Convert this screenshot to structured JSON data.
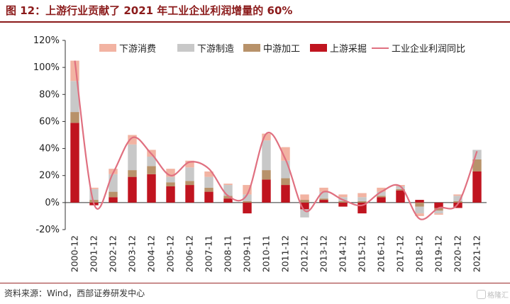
{
  "figure_title": "图 12：上游行业贡献了 2021 年工业企业利润增量的 60%",
  "source": "资料来源：Wind，西部证券研发中心",
  "watermark": "格隆汇",
  "colors": {
    "downstream_consumption": "#f2b3a2",
    "downstream_manufacturing": "#c8c8c8",
    "midstream_processing": "#b8926a",
    "upstream_mining": "#c0141f",
    "profit_yoy_line": "#e07080",
    "title": "#8b1a1a"
  },
  "chart_data": {
    "type": "bar",
    "stacked": true,
    "categories": [
      "2000-12",
      "2001-12",
      "2002-12",
      "2003-12",
      "2004-12",
      "2005-12",
      "2006-12",
      "2007-11",
      "2008-11",
      "2009-11",
      "2010-11",
      "2011-12",
      "2012-12",
      "2013-12",
      "2014-12",
      "2015-12",
      "2016-12",
      "2017-12",
      "2018-12",
      "2019-12",
      "2020-12",
      "2021-12"
    ],
    "ylim": [
      -20,
      120
    ],
    "yticks": [
      "-20%",
      "0%",
      "20%",
      "40%",
      "60%",
      "80%",
      "100%",
      "120%"
    ],
    "ytick_values": [
      -20,
      0,
      20,
      40,
      60,
      80,
      100,
      120
    ],
    "legend_position": "top",
    "series": [
      {
        "name": "下游消费",
        "kind": "bar",
        "values": [
          15,
          1,
          4,
          7,
          5,
          6,
          5,
          4,
          1,
          7,
          5,
          10,
          4,
          3,
          2,
          3,
          3,
          1,
          -2,
          -1,
          1,
          0
        ]
      },
      {
        "name": "下游制造",
        "kind": "bar",
        "values": [
          23,
          8,
          13,
          19,
          7,
          4,
          10,
          8,
          8,
          5,
          22,
          13,
          -6,
          5,
          3,
          3,
          3,
          2,
          -5,
          -2,
          4,
          7
        ]
      },
      {
        "name": "中游加工",
        "kind": "bar",
        "values": [
          8,
          2,
          4,
          5,
          6,
          3,
          3,
          3,
          2,
          1,
          7,
          5,
          2,
          1,
          1,
          1,
          1,
          1,
          -3,
          -2,
          1,
          9
        ]
      },
      {
        "name": "上游采掘",
        "kind": "bar",
        "values": [
          59,
          -2,
          4,
          19,
          21,
          12,
          13,
          8,
          3,
          -8,
          17,
          13,
          -5,
          2,
          -3,
          -8,
          4,
          9,
          2,
          -4,
          -4,
          23
        ]
      },
      {
        "name": "工业企业利润同比",
        "kind": "line",
        "values": [
          105,
          -1,
          22,
          48,
          36,
          20,
          30,
          25,
          5,
          6,
          51,
          32,
          -6,
          8,
          2,
          -2,
          8,
          12,
          -12,
          -4,
          -1,
          38
        ]
      }
    ]
  }
}
